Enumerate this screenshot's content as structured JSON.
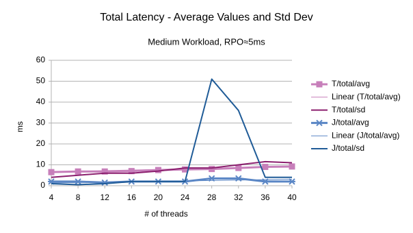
{
  "chart_data": {
    "type": "line",
    "title": "Total Latency - Average Values and Std Dev",
    "subtitle": "Medium Workload, RPO≈5ms",
    "x_label": "# of threads",
    "y_label": "ms",
    "x": [
      4,
      8,
      12,
      16,
      20,
      24,
      28,
      32,
      36,
      40
    ],
    "xlim": [
      4,
      40
    ],
    "xticks": [
      4,
      8,
      12,
      16,
      20,
      24,
      28,
      32,
      36,
      40
    ],
    "ylim": [
      0,
      60
    ],
    "yticks": [
      0,
      10,
      20,
      30,
      40,
      50,
      60
    ],
    "grid": true,
    "legend": "right",
    "series": [
      {
        "name": "T/total/avg",
        "color": "#c77fba",
        "width": 3,
        "marker": "square",
        "values": [
          6.5,
          6.8,
          6.8,
          7.0,
          7.5,
          7.8,
          8.0,
          8.5,
          9.0,
          9.2
        ]
      },
      {
        "name": "Linear (T/total/avg)",
        "color": "#c77fba",
        "width": 1,
        "values": [
          6.6,
          6.9,
          7.2,
          7.5,
          7.8,
          8.1,
          8.4,
          8.7,
          9.0,
          9.3
        ]
      },
      {
        "name": "T/total/sd",
        "color": "#8b1f6e",
        "width": 2,
        "values": [
          4,
          5,
          6,
          6,
          7,
          8.5,
          8.5,
          10,
          11.5,
          11
        ]
      },
      {
        "name": "J/total/avg",
        "color": "#5a86c5",
        "width": 3,
        "marker": "star",
        "values": [
          2,
          2,
          1.5,
          2,
          2,
          2,
          3.5,
          3.5,
          2,
          2
        ]
      },
      {
        "name": "Linear (J/total/avg)",
        "color": "#5a86c5",
        "width": 1,
        "values": [
          1.3,
          1.5,
          1.7,
          1.9,
          2.1,
          2.3,
          2.5,
          2.7,
          2.9,
          3.1
        ]
      },
      {
        "name": "J/total/sd",
        "color": "#1f5b97",
        "width": 2,
        "values": [
          1,
          0.5,
          1,
          2,
          2,
          2,
          51,
          36,
          4,
          4
        ]
      }
    ]
  }
}
